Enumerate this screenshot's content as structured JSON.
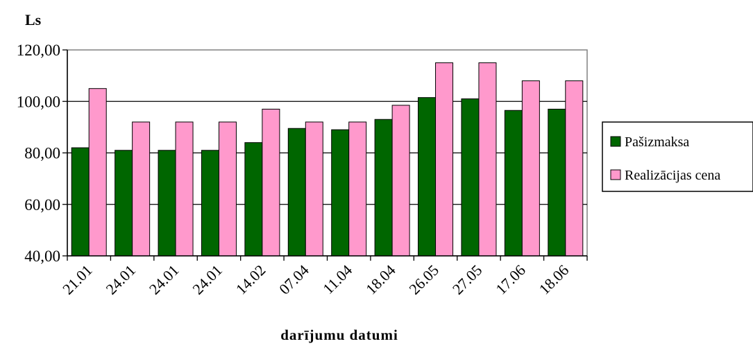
{
  "chart_data": {
    "type": "bar",
    "ylabel": "Ls",
    "xlabel": "darījumu datumi",
    "ylim": [
      40,
      120
    ],
    "yticks": [
      "40,00",
      "60,00",
      "80,00",
      "100,00",
      "120,00"
    ],
    "categories": [
      "21.01",
      "24.01",
      "24.01",
      "24.01",
      "14.02",
      "07.04",
      "11.04",
      "18.04",
      "26.05",
      "27.05",
      "17.06",
      "18.06"
    ],
    "series": [
      {
        "name": "Pašizmaksa",
        "color": "#006600",
        "values": [
          82.0,
          81.0,
          81.0,
          81.0,
          84.0,
          89.5,
          89.0,
          93.0,
          101.5,
          101.0,
          96.5,
          97.0
        ]
      },
      {
        "name": "Realizācijas cena",
        "color": "#ff99cc",
        "values": [
          105.0,
          92.0,
          92.0,
          92.0,
          97.0,
          92.0,
          92.0,
          98.5,
          115.0,
          115.0,
          108.0,
          108.0
        ]
      }
    ],
    "grid": true,
    "legend": "right"
  }
}
